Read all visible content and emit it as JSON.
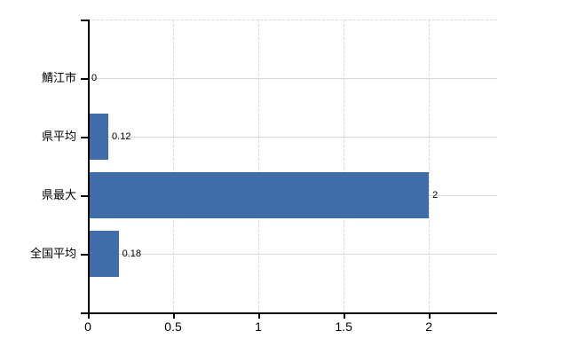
{
  "chart_data": {
    "type": "bar",
    "orientation": "horizontal",
    "title": "",
    "xlabel": "",
    "ylabel": "",
    "categories": [
      "鯖江市",
      "県平均",
      "県最大",
      "全国平均"
    ],
    "values": [
      0,
      0.12,
      2,
      0.18
    ],
    "value_labels": [
      "0",
      "0.12",
      "2",
      "0.18"
    ],
    "xlim": [
      0,
      2.4
    ],
    "xticks": [
      0,
      0.5,
      1,
      1.5,
      2
    ],
    "xtick_labels": [
      "0",
      "0.5",
      "1",
      "1.5",
      "2"
    ],
    "legend": "none",
    "grid": {
      "vertical": "dashed",
      "horizontal": "solid",
      "top_border": "dashed"
    },
    "colors": {
      "bar": "#3e6da9",
      "grid": "#d6dad6",
      "axis": "#000000",
      "text": "#000000",
      "background": "#ffffff"
    }
  }
}
